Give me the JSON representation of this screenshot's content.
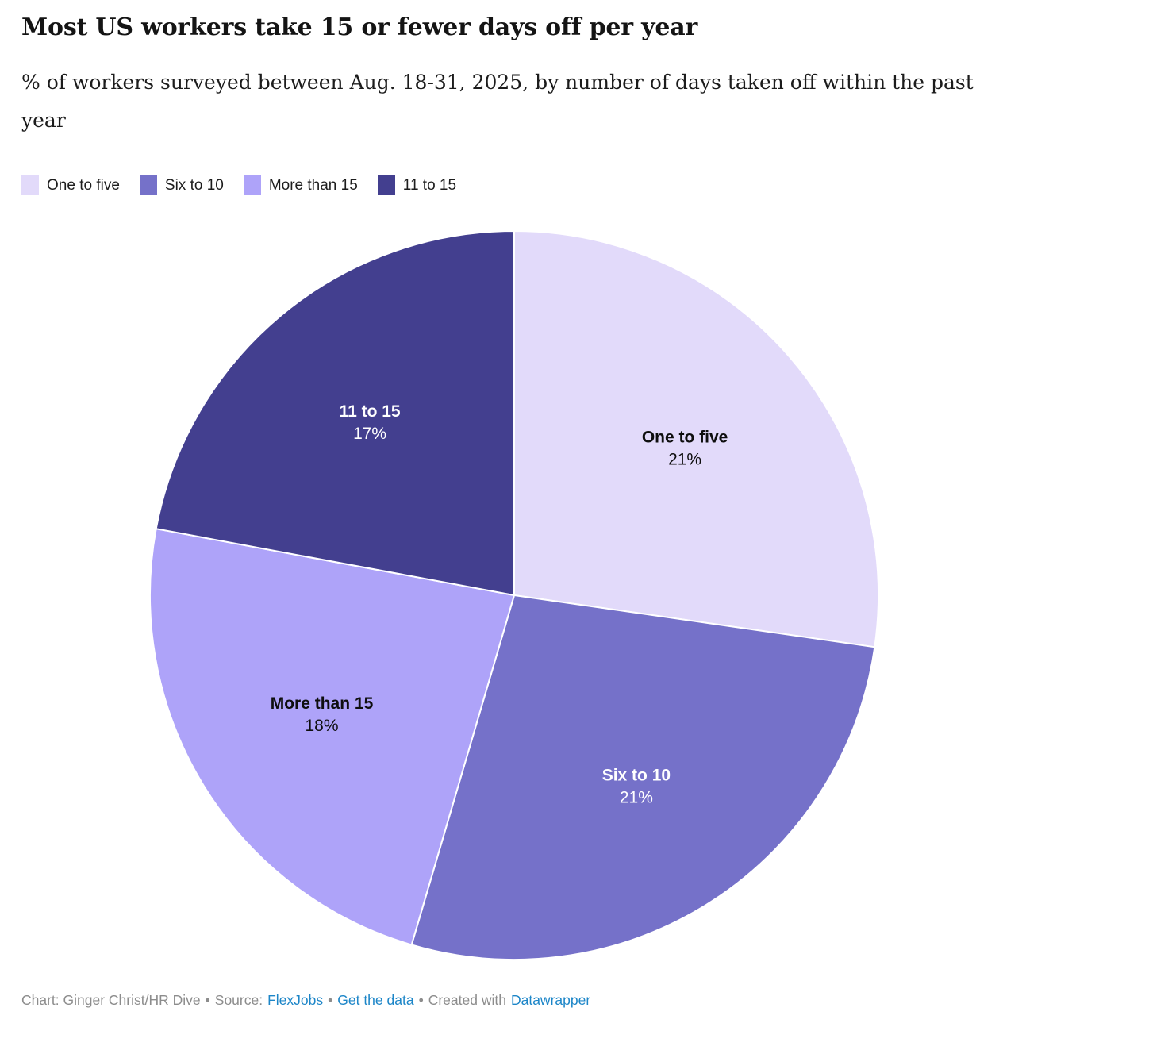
{
  "chart_data": {
    "type": "pie",
    "title": "Most US workers take 15 or fewer days off per year",
    "subtitle": "% of workers surveyed between Aug. 18-31, 2025, by number of days taken off within the past year",
    "unit": "%",
    "direction": "clockwise",
    "start_angle_deg": 0,
    "slices": [
      {
        "label": "One to five",
        "value": 21,
        "display": "21%",
        "color": "#e2dafa",
        "label_color": "#0e0e0e"
      },
      {
        "label": "Six to 10",
        "value": 21,
        "display": "21%",
        "color": "#7571c9",
        "label_color": "#ffffff"
      },
      {
        "label": "More than 15",
        "value": 18,
        "display": "18%",
        "color": "#aea3f9",
        "label_color": "#0e0e0e"
      },
      {
        "label": "11 to 15",
        "value": 17,
        "display": "17%",
        "color": "#433f8f",
        "label_color": "#ffffff"
      }
    ],
    "legend_order": [
      "One to five",
      "Six to 10",
      "More than 15",
      "11 to 15"
    ],
    "legend_position": "top-left"
  },
  "footer": {
    "credit": "Chart: Ginger Christ/HR Dive",
    "bullet": "•",
    "source_label": "Source:",
    "source_name": "FlexJobs",
    "get_the_data": "Get the data",
    "created_with": "Created with",
    "tool_name": "Datawrapper",
    "link_color": "#1d86c8",
    "text_color": "#8c8c8c"
  }
}
